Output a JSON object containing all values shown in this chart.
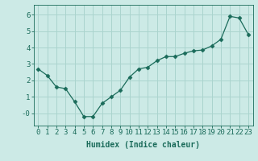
{
  "x": [
    0,
    1,
    2,
    3,
    4,
    5,
    6,
    7,
    8,
    9,
    10,
    11,
    12,
    13,
    14,
    15,
    16,
    17,
    18,
    19,
    20,
    21,
    22,
    23
  ],
  "y": [
    2.7,
    2.3,
    1.6,
    1.5,
    0.7,
    -0.2,
    -0.2,
    0.6,
    1.0,
    1.4,
    2.2,
    2.7,
    2.8,
    3.2,
    3.45,
    3.45,
    3.65,
    3.8,
    3.85,
    4.1,
    4.5,
    5.9,
    5.8,
    4.8
  ],
  "line_color": "#1a6b5a",
  "marker": "D",
  "marker_size": 2.5,
  "bg_color": "#cceae6",
  "grid_color": "#aad4ce",
  "xlabel": "Humidex (Indice chaleur)",
  "xlim": [
    -0.5,
    23.5
  ],
  "ylim": [
    -0.75,
    6.6
  ],
  "yticks": [
    0,
    1,
    2,
    3,
    4,
    5,
    6
  ],
  "ytick_labels": [
    "-0",
    "1",
    "2",
    "3",
    "4",
    "5",
    "6"
  ],
  "xticks": [
    0,
    1,
    2,
    3,
    4,
    5,
    6,
    7,
    8,
    9,
    10,
    11,
    12,
    13,
    14,
    15,
    16,
    17,
    18,
    19,
    20,
    21,
    22,
    23
  ],
  "label_color": "#1a6b5a",
  "tick_color": "#1a6b5a",
  "font_size_xlabel": 7,
  "font_size_ticks": 6.5
}
